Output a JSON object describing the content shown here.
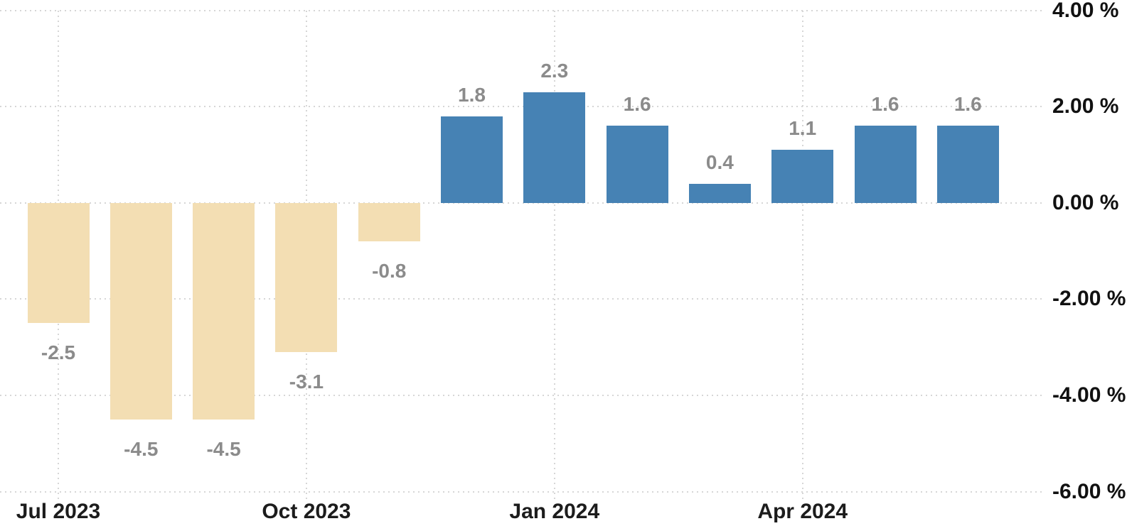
{
  "chart_data": {
    "type": "bar",
    "title": "",
    "xlabel": "",
    "ylabel": "",
    "unit": "%",
    "ylim": [
      -6,
      4
    ],
    "grid": "dotted",
    "legend_position": "none",
    "values": [
      -2.5,
      -4.5,
      -4.5,
      -3.1,
      -0.8,
      1.8,
      2.3,
      1.6,
      0.4,
      1.1,
      1.6,
      1.6
    ],
    "value_labels": [
      "-2.5",
      "-4.5",
      "-4.5",
      "-3.1",
      "-0.8",
      "1.8",
      "2.3",
      "1.6",
      "0.4",
      "1.1",
      "1.6",
      "1.6"
    ],
    "x_ticks": [
      {
        "index": 0,
        "label": "Jul 2023"
      },
      {
        "index": 3,
        "label": "Oct 2023"
      },
      {
        "index": 6,
        "label": "Jan 2024"
      },
      {
        "index": 9,
        "label": "Apr 2024"
      }
    ],
    "y_ticks": [
      {
        "value": 4,
        "label": "4.00 %"
      },
      {
        "value": 2,
        "label": "2.00 %"
      },
      {
        "value": 0,
        "label": "0.00 %"
      },
      {
        "value": -2,
        "label": "-2.00 %"
      },
      {
        "value": -4,
        "label": "-4.00 %"
      },
      {
        "value": -6,
        "label": "-6.00 %"
      }
    ],
    "colors": {
      "positive_bar": "#4682B4",
      "negative_bar": "#F3DEB3",
      "gridline": "#d6d6d6",
      "value_label": "#8b8b8b",
      "axis_label": "#1c1c1c",
      "background": "#ffffff"
    }
  }
}
